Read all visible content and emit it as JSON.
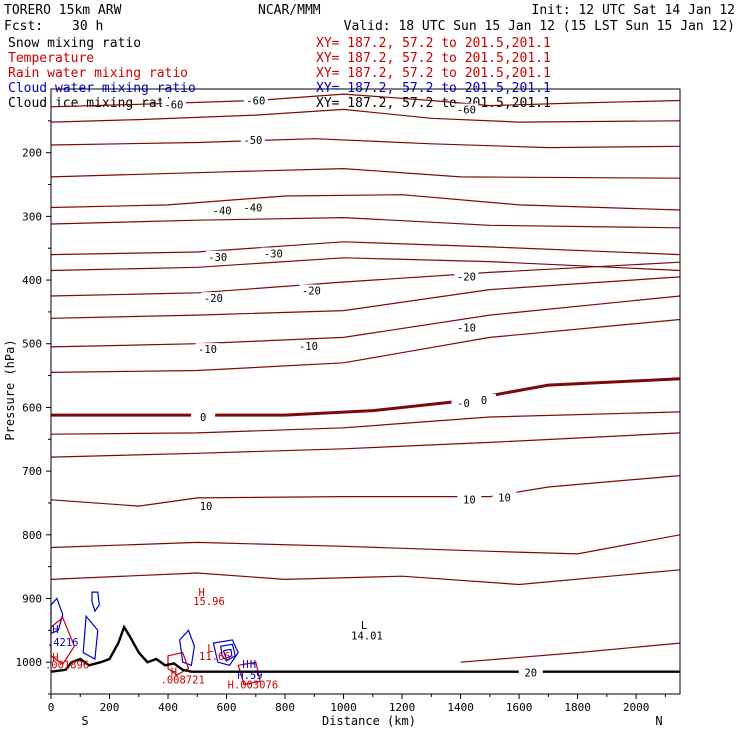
{
  "header": {
    "model": "TORERO  15km ARW",
    "org": "NCAR/MMM",
    "init": "Init: 12 UTC Sat 14 Jan 12",
    "fcst_label": "Fcst:",
    "fcst_value": "30 h",
    "valid": "Valid: 18 UTC Sun 15 Jan 12 (15 LST Sun 15 Jan 12)"
  },
  "fields": [
    {
      "name": "Snow mixing ratio",
      "xy": "XY= 187.2, 57.2 to 201.5,201.1",
      "color": "#000000",
      "xy_color": "#cc0000"
    },
    {
      "name": "Temperature",
      "xy": "XY= 187.2, 57.2 to 201.5,201.1",
      "color": "#cc0000",
      "xy_color": "#cc0000"
    },
    {
      "name": "Rain water mixing ratio",
      "xy": "XY= 187.2, 57.2 to 201.5,201.1",
      "color": "#cc0000",
      "xy_color": "#cc0000"
    },
    {
      "name": "Cloud water mixing ratio",
      "xy": "XY= 187.2, 57.2 to 201.5,201.1",
      "color": "#0000cc",
      "xy_color": "#0000cc"
    },
    {
      "name": "Cloud ice mixing ratio",
      "xy": "XY= 187.2, 57.2 to 201.5,201.1",
      "color": "#000000",
      "xy_color": "#000000"
    }
  ],
  "chart_data": {
    "type": "contour",
    "xlabel": "Distance (km)",
    "ylabel": "Pressure (hPa)",
    "xlim": [
      0,
      2150
    ],
    "ylim": [
      1050,
      100
    ],
    "xticks": [
      0,
      200,
      400,
      600,
      800,
      1000,
      1200,
      1400,
      1600,
      1800,
      2000
    ],
    "yticks": [
      200,
      300,
      400,
      500,
      600,
      700,
      800,
      900,
      1000
    ],
    "end_labels": {
      "left": "S",
      "right": "N"
    },
    "colors": {
      "temp": "#7a0a0a",
      "freeze": "#7a0a0a",
      "cloud_water": "#0000cc",
      "rain": "#cc0000",
      "terrain": "#000000"
    },
    "isotherms": [
      {
        "label": "-60",
        "points": [
          [
            0,
            128
          ],
          [
            300,
            124
          ],
          [
            700,
            118
          ],
          [
            1000,
            108
          ],
          [
            1300,
            118
          ],
          [
            1500,
            126
          ],
          [
            1800,
            122
          ],
          [
            2150,
            118
          ]
        ]
      },
      {
        "label": "-60",
        "points": [
          [
            0,
            152
          ],
          [
            300,
            148
          ],
          [
            700,
            141
          ],
          [
            1000,
            132
          ],
          [
            1300,
            146
          ],
          [
            1600,
            152
          ],
          [
            2150,
            150
          ]
        ]
      },
      {
        "label": "-50",
        "points": [
          [
            0,
            188
          ],
          [
            500,
            184
          ],
          [
            900,
            178
          ],
          [
            1300,
            186
          ],
          [
            1700,
            192
          ],
          [
            2150,
            190
          ]
        ]
      },
      {
        "label": "-50",
        "points": [
          [
            0,
            238
          ],
          [
            600,
            230
          ],
          [
            1000,
            225
          ],
          [
            1400,
            238
          ],
          [
            2150,
            240
          ]
        ]
      },
      {
        "label": "-40",
        "points": [
          [
            0,
            286
          ],
          [
            400,
            282
          ],
          [
            800,
            268
          ],
          [
            1200,
            266
          ],
          [
            1600,
            282
          ],
          [
            2150,
            290
          ]
        ]
      },
      {
        "label": "-40",
        "points": [
          [
            0,
            312
          ],
          [
            500,
            306
          ],
          [
            1000,
            302
          ],
          [
            1500,
            314
          ],
          [
            2150,
            318
          ]
        ]
      },
      {
        "label": "-30",
        "points": [
          [
            0,
            360
          ],
          [
            500,
            356
          ],
          [
            1000,
            340
          ],
          [
            1500,
            348
          ],
          [
            2150,
            360
          ]
        ]
      },
      {
        "label": "-30",
        "points": [
          [
            0,
            385
          ],
          [
            500,
            380
          ],
          [
            1000,
            365
          ],
          [
            1500,
            371
          ],
          [
            2150,
            385
          ]
        ]
      },
      {
        "label": "-20",
        "points": [
          [
            0,
            425
          ],
          [
            500,
            420
          ],
          [
            1000,
            403
          ],
          [
            1500,
            388
          ],
          [
            2150,
            372
          ]
        ]
      },
      {
        "label": "-20",
        "points": [
          [
            0,
            460
          ],
          [
            500,
            455
          ],
          [
            1000,
            448
          ],
          [
            1500,
            415
          ],
          [
            2150,
            395
          ]
        ]
      },
      {
        "label": "-10",
        "points": [
          [
            0,
            505
          ],
          [
            500,
            500
          ],
          [
            1000,
            490
          ],
          [
            1500,
            455
          ],
          [
            2150,
            425
          ]
        ]
      },
      {
        "label": "-10",
        "points": [
          [
            0,
            545
          ],
          [
            500,
            542
          ],
          [
            1000,
            530
          ],
          [
            1500,
            490
          ],
          [
            2150,
            462
          ]
        ]
      },
      {
        "label": "0",
        "freezing": true,
        "points": [
          [
            0,
            612
          ],
          [
            400,
            612
          ],
          [
            800,
            612
          ],
          [
            1100,
            605
          ],
          [
            1400,
            590
          ],
          [
            1700,
            565
          ],
          [
            2150,
            555
          ]
        ]
      },
      {
        "label": "0",
        "points": [
          [
            0,
            642
          ],
          [
            500,
            640
          ],
          [
            1000,
            632
          ],
          [
            1500,
            615
          ],
          [
            2150,
            607
          ]
        ]
      },
      {
        "label": "10",
        "points": [
          [
            0,
            678
          ],
          [
            500,
            672
          ],
          [
            1000,
            665
          ],
          [
            1500,
            655
          ],
          [
            2150,
            640
          ]
        ]
      },
      {
        "label": "10",
        "points": [
          [
            0,
            745
          ],
          [
            300,
            755
          ],
          [
            500,
            742
          ],
          [
            1000,
            740
          ],
          [
            1500,
            740
          ],
          [
            1700,
            725
          ],
          [
            2150,
            707
          ]
        ]
      },
      {
        "label": "",
        "points": [
          [
            0,
            820
          ],
          [
            500,
            812
          ],
          [
            1000,
            818
          ],
          [
            1500,
            826
          ],
          [
            1800,
            830
          ],
          [
            2150,
            800
          ]
        ]
      },
      {
        "label": "",
        "points": [
          [
            0,
            870
          ],
          [
            500,
            860
          ],
          [
            800,
            870
          ],
          [
            1200,
            865
          ],
          [
            1600,
            878
          ],
          [
            2150,
            855
          ]
        ]
      },
      {
        "label": "20",
        "points": [
          [
            1400,
            1000
          ],
          [
            1800,
            985
          ],
          [
            2150,
            970
          ]
        ]
      }
    ],
    "temp_labels": [
      {
        "text": "-60",
        "x": 420,
        "p": 126
      },
      {
        "text": "-60",
        "x": 700,
        "p": 120
      },
      {
        "text": "-60",
        "x": 1420,
        "p": 134
      },
      {
        "text": "-50",
        "x": 690,
        "p": 182
      },
      {
        "text": "-40",
        "x": 585,
        "p": 292
      },
      {
        "text": "-40",
        "x": 690,
        "p": 288
      },
      {
        "text": "-30",
        "x": 570,
        "p": 365
      },
      {
        "text": "-30",
        "x": 760,
        "p": 360
      },
      {
        "text": "-20",
        "x": 555,
        "p": 430
      },
      {
        "text": "-20",
        "x": 890,
        "p": 418
      },
      {
        "text": "-20",
        "x": 1420,
        "p": 396
      },
      {
        "text": "-10",
        "x": 535,
        "p": 510
      },
      {
        "text": "-10",
        "x": 880,
        "p": 505
      },
      {
        "text": "-10",
        "x": 1420,
        "p": 476
      },
      {
        "text": "-0",
        "x": 1410,
        "p": 595
      },
      {
        "text": "0",
        "x": 1480,
        "p": 590
      },
      {
        "text": "0",
        "x": 520,
        "p": 617
      },
      {
        "text": "10",
        "x": 530,
        "p": 756
      },
      {
        "text": "10",
        "x": 1430,
        "p": 746
      },
      {
        "text": "10",
        "x": 1550,
        "p": 743
      },
      {
        "text": "20",
        "x": 1640,
        "p": 1018
      }
    ],
    "extrema": [
      {
        "text": "H",
        "x": 515,
        "p": 890,
        "color": "#cc0000"
      },
      {
        "text": "15.96",
        "x": 540,
        "p": 904,
        "color": "#cc0000"
      },
      {
        "text": "L",
        "x": 1070,
        "p": 942,
        "color": "#000000"
      },
      {
        "text": "14.01",
        "x": 1080,
        "p": 958,
        "color": "#000000"
      },
      {
        "text": "H",
        "x": 15,
        "p": 948,
        "color": "#0000cc"
      },
      {
        "text": ".4216",
        "x": 40,
        "p": 968,
        "color": "#0000cc"
      },
      {
        "text": "H",
        "x": 15,
        "p": 992,
        "color": "#cc0000"
      },
      {
        "text": ".001896",
        "x": 55,
        "p": 1004,
        "color": "#cc0000"
      },
      {
        "text": "H",
        "x": 420,
        "p": 1015,
        "color": "#cc0000"
      },
      {
        "text": ".008721",
        "x": 450,
        "p": 1027,
        "color": "#cc0000"
      },
      {
        "text": "L",
        "x": 545,
        "p": 978,
        "color": "#cc0000"
      },
      {
        "text": "11.66",
        "x": 560,
        "p": 990,
        "color": "#cc0000"
      },
      {
        "text": "H",
        "x": 665,
        "p": 1003,
        "color": "#0000cc"
      },
      {
        "text": "H",
        "x": 690,
        "p": 1003,
        "color": "#0000cc"
      },
      {
        "text": "H.59",
        "x": 680,
        "p": 1020,
        "color": "#0000cc"
      },
      {
        "text": "H.003076",
        "x": 690,
        "p": 1035,
        "color": "#cc0000"
      }
    ],
    "cloud_water_contours": [
      {
        "points": [
          [
            0,
            910
          ],
          [
            20,
            900
          ],
          [
            40,
            925
          ],
          [
            25,
            950
          ],
          [
            0,
            955
          ]
        ]
      },
      {
        "points": [
          [
            140,
            890
          ],
          [
            160,
            890
          ],
          [
            165,
            910
          ],
          [
            150,
            920
          ],
          [
            140,
            905
          ]
        ]
      },
      {
        "points": [
          [
            120,
            928
          ],
          [
            160,
            950
          ],
          [
            150,
            995
          ],
          [
            110,
            985
          ]
        ]
      },
      {
        "points": [
          [
            440,
            965
          ],
          [
            470,
            950
          ],
          [
            490,
            975
          ],
          [
            480,
            1005
          ],
          [
            450,
            1000
          ]
        ]
      },
      {
        "points": [
          [
            555,
            970
          ],
          [
            620,
            965
          ],
          [
            640,
            985
          ],
          [
            610,
            1005
          ],
          [
            570,
            1000
          ]
        ]
      },
      {
        "points": [
          [
            580,
            975
          ],
          [
            620,
            972
          ],
          [
            630,
            990
          ],
          [
            600,
            998
          ],
          [
            585,
            990
          ]
        ]
      },
      {
        "points": [
          [
            590,
            982
          ],
          [
            615,
            980
          ],
          [
            618,
            990
          ],
          [
            598,
            994
          ]
        ]
      }
    ],
    "rain_contours": [
      {
        "points": [
          [
            0,
            945
          ],
          [
            40,
            930
          ],
          [
            80,
            975
          ],
          [
            40,
            1003
          ],
          [
            0,
            990
          ]
        ]
      },
      {
        "points": [
          [
            400,
            990
          ],
          [
            450,
            985
          ],
          [
            470,
            1010
          ],
          [
            430,
            1020
          ],
          [
            400,
            1010
          ]
        ]
      },
      {
        "points": [
          [
            640,
            1005
          ],
          [
            700,
            1000
          ],
          [
            715,
            1030
          ],
          [
            660,
            1035
          ]
        ]
      }
    ],
    "terrain": [
      [
        0,
        1015
      ],
      [
        50,
        1012
      ],
      [
        70,
        1000
      ],
      [
        100,
        995
      ],
      [
        130,
        1005
      ],
      [
        170,
        1000
      ],
      [
        200,
        995
      ],
      [
        230,
        970
      ],
      [
        250,
        945
      ],
      [
        270,
        960
      ],
      [
        300,
        985
      ],
      [
        330,
        1000
      ],
      [
        360,
        995
      ],
      [
        390,
        1005
      ],
      [
        420,
        1002
      ],
      [
        450,
        1012
      ],
      [
        480,
        1015
      ],
      [
        2150,
        1015
      ]
    ]
  }
}
